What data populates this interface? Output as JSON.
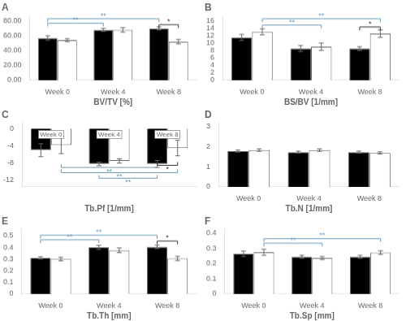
{
  "chart_data": [
    {
      "type": "bar",
      "title": "A",
      "x_label": "BV/TV [%]",
      "grid": false,
      "categories": [
        "Week 0",
        "Week 4",
        "Week 8"
      ],
      "series": [
        {
          "color": "#000000",
          "values": [
            57,
            68,
            70
          ],
          "errors": [
            3,
            2,
            2
          ]
        },
        {
          "color": "#ffffff",
          "values": [
            54,
            68,
            52
          ],
          "errors": [
            2,
            3,
            3
          ]
        }
      ],
      "ylim": [
        0,
        88
      ],
      "yticks": [
        {
          "value": 0,
          "label": "0.00"
        },
        {
          "value": 20,
          "label": "20.00"
        },
        {
          "value": 40,
          "label": "40.00"
        },
        {
          "value": 60,
          "label": "60.00"
        },
        {
          "value": 80,
          "label": "80.00"
        }
      ],
      "brackets": [
        {
          "from_category": 0,
          "from_series": 0,
          "to_category": 1,
          "to_series": 0,
          "y": 77,
          "label": "**",
          "color": "#6699bb"
        },
        {
          "from_category": 0,
          "from_series": 0,
          "to_category": 2,
          "to_series": 0,
          "y": 83,
          "label": "**",
          "color": "#6699bb"
        },
        {
          "from_category": 2,
          "from_series": 0,
          "to_category": 2,
          "to_series": 1,
          "y": 75,
          "label": "*",
          "color": "#333333"
        }
      ]
    },
    {
      "type": "bar",
      "title": "B",
      "x_label": "BS/BV [1/mm]",
      "grid": false,
      "categories": [
        "Week 0",
        "Week 4",
        "Week 8"
      ],
      "series": [
        {
          "color": "#000000",
          "values": [
            11.5,
            8.5,
            8.5
          ],
          "errors": [
            0.8,
            0.8,
            0.5
          ]
        },
        {
          "color": "#ffffff",
          "values": [
            13,
            9,
            12.5
          ],
          "errors": [
            0.8,
            1.0,
            1.0
          ]
        }
      ],
      "ylim": [
        0,
        17.5
      ],
      "yticks": [
        0,
        2,
        4,
        6,
        8,
        10,
        12,
        14,
        16
      ],
      "brackets": [
        {
          "from_category": 0,
          "from_series": 1,
          "to_category": 1,
          "to_series": 1,
          "y": 14.8,
          "label": "**",
          "color": "#6699bb"
        },
        {
          "from_category": 0,
          "from_series": 1,
          "to_category": 2,
          "to_series": 1,
          "y": 16.5,
          "label": "**",
          "color": "#6699bb"
        },
        {
          "from_category": 2,
          "from_series": 0,
          "to_category": 2,
          "to_series": 1,
          "y": 14.3,
          "label": "*",
          "color": "#333333"
        }
      ]
    },
    {
      "type": "bar",
      "title": "C",
      "x_label": "Tb.Pf [1/mm]",
      "grid": false,
      "categories": [
        null,
        null,
        null
      ],
      "series": [
        {
          "color": "#000000",
          "values": [
            -5.0,
            -8.2,
            -8.2
          ],
          "errors": [
            1.5,
            0.4,
            0.8
          ]
        },
        {
          "color": "#ffffff",
          "values": [
            -3.8,
            -7.5,
            -4.5
          ],
          "errors": [
            2.0,
            0.5,
            1.8
          ]
        }
      ],
      "ylim": [
        -13.5,
        1.5
      ],
      "yticks": [
        0,
        -4,
        -8,
        -12
      ],
      "annotations": [
        {
          "text": "Week 0",
          "category": 0
        },
        {
          "text": "Week 4",
          "category": 1
        },
        {
          "text": "Week 8",
          "category": 2
        }
      ],
      "brackets": [
        {
          "from_category": 0,
          "from_series": 1,
          "to_category": 2,
          "to_series": 0,
          "y": -9.0,
          "label": "**",
          "color": "#6699bb"
        },
        {
          "from_category": 0,
          "from_series": 1,
          "to_category": 2,
          "to_series": 1,
          "y": -10.2,
          "label": "**",
          "color": "#6699bb"
        },
        {
          "from_category": 1,
          "from_series": 0,
          "to_category": 2,
          "to_series": 0,
          "y": -11.5,
          "label": "**",
          "color": "#6699bb"
        },
        {
          "from_category": 2,
          "from_series": 0,
          "to_category": 2,
          "to_series": 1,
          "y": -8.5,
          "label": "*",
          "color": "#333333"
        }
      ]
    },
    {
      "type": "bar",
      "title": "D",
      "x_label": "Tb.N [1/mm]",
      "grid": false,
      "categories": [
        "Week 0",
        "Week 4",
        "Week 8"
      ],
      "series": [
        {
          "color": "#000000",
          "values": [
            1.77,
            1.72,
            1.72
          ],
          "errors": [
            0.05,
            0.05,
            0.05
          ]
        },
        {
          "color": "#ffffff",
          "values": [
            1.82,
            1.82,
            1.68
          ],
          "errors": [
            0.06,
            0.06,
            0.05
          ]
        }
      ],
      "ylim": [
        0,
        3.2
      ],
      "yticks": [
        0,
        1,
        2,
        3
      ],
      "brackets": []
    },
    {
      "type": "bar",
      "title": "E",
      "x_label": "Tb.Th [mm]",
      "grid": false,
      "categories": [
        "Week 0",
        "Week 4",
        "Week 8"
      ],
      "series": [
        {
          "color": "#000000",
          "values": [
            0.31,
            0.4,
            0.405
          ],
          "errors": [
            0.01,
            0.018,
            0.015
          ]
        },
        {
          "color": "#ffffff",
          "values": [
            0.3,
            0.375,
            0.305
          ],
          "errors": [
            0.015,
            0.02,
            0.018
          ]
        }
      ],
      "ylim": [
        0,
        0.56
      ],
      "yticks": [
        0,
        0.1,
        0.2,
        0.3,
        0.4,
        0.5
      ],
      "brackets": [
        {
          "from_category": 0,
          "from_series": 0,
          "to_category": 1,
          "to_series": 0,
          "y": 0.465,
          "label": "**",
          "color": "#6699bb"
        },
        {
          "from_category": 0,
          "from_series": 0,
          "to_category": 2,
          "to_series": 0,
          "y": 0.505,
          "label": "**",
          "color": "#6699bb"
        },
        {
          "from_category": 2,
          "from_series": 0,
          "to_category": 2,
          "to_series": 1,
          "y": 0.455,
          "label": "*",
          "color": "#333333"
        }
      ]
    },
    {
      "type": "bar",
      "title": "F",
      "x_label": "Tb.Sp [mm]",
      "grid": false,
      "categories": [
        "Week 0",
        "Week 4",
        "Week 8"
      ],
      "series": [
        {
          "color": "#000000",
          "values": [
            0.265,
            0.245,
            0.245
          ],
          "errors": [
            0.018,
            0.01,
            0.01
          ]
        },
        {
          "color": "#ffffff",
          "values": [
            0.275,
            0.237,
            0.273
          ],
          "errors": [
            0.02,
            0.01,
            0.012
          ]
        }
      ],
      "ylim": [
        0,
        0.43
      ],
      "yticks": [
        0,
        0.1,
        0.2,
        0.3,
        0.4
      ],
      "brackets": [
        {
          "from_category": 0,
          "from_series": 1,
          "to_category": 1,
          "to_series": 1,
          "y": 0.335,
          "label": "**",
          "color": "#6699bb"
        },
        {
          "from_category": 0,
          "from_series": 1,
          "to_category": 2,
          "to_series": 1,
          "y": 0.365,
          "label": "**",
          "color": "#6699bb"
        }
      ]
    }
  ]
}
